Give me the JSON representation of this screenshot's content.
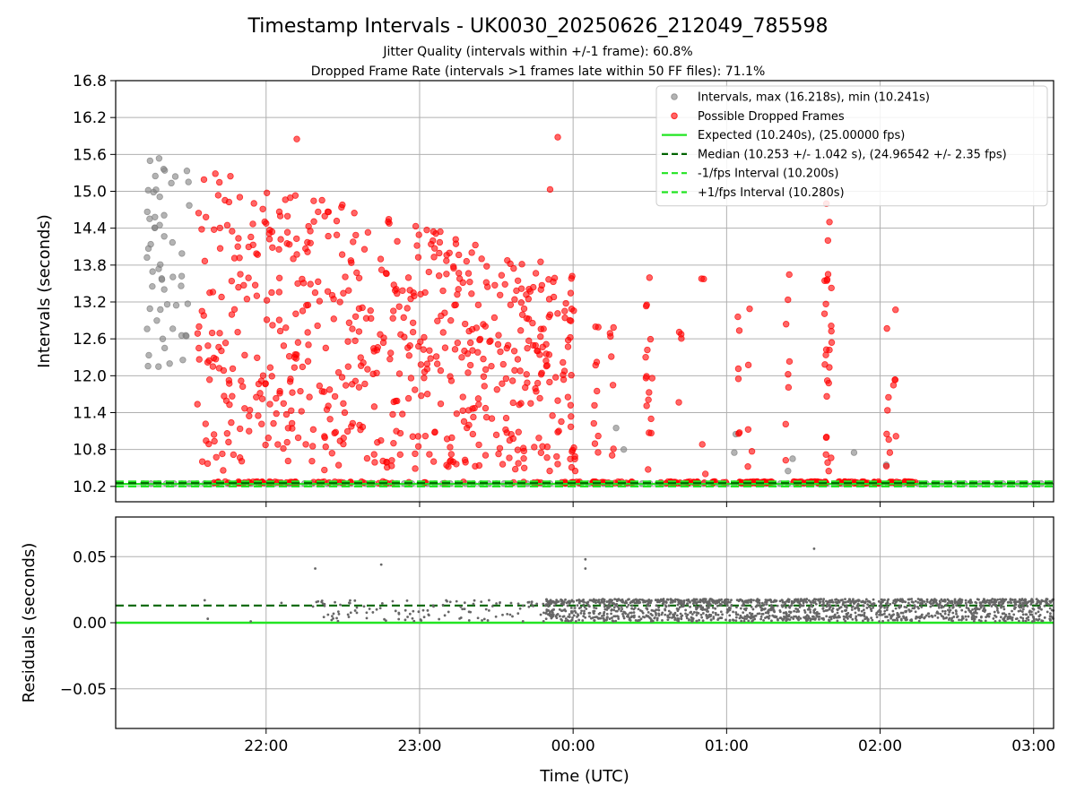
{
  "chart_data": [
    {
      "type": "scatter",
      "panel": "intervals",
      "title": "Timestamp Intervals - UK0030_20250626_212049_785598",
      "subtitles": [
        "Jitter Quality (intervals within +/-1 frame): 60.8%",
        "Dropped Frame Rate (intervals >1 frames late within 50 FF files): 71.1%"
      ],
      "ylabel": "Intervals (seconds)",
      "ylim": [
        9.95,
        16.8
      ],
      "yticks": [
        10.2,
        10.8,
        11.4,
        12.0,
        12.6,
        13.2,
        13.8,
        14.4,
        15.0,
        15.6,
        16.2,
        16.8
      ],
      "ytick_labels": [
        "10.2",
        "10.8",
        "11.4",
        "12.0",
        "12.6",
        "13.2",
        "13.8",
        "14.4",
        "15.0",
        "15.6",
        "16.2",
        "16.8"
      ],
      "x_range_hours": [
        21.02,
        27.13
      ],
      "grid": true,
      "legend_position": "top-right",
      "legend": [
        {
          "label": "Intervals, max (16.218s), min (10.241s)",
          "marker": "circle",
          "color": "#808080"
        },
        {
          "label": "Possible Dropped Frames",
          "marker": "circle",
          "color": "#ff0000"
        },
        {
          "label": "Expected (10.240s), (25.00000 fps)",
          "marker": "solid-line",
          "color": "#22e522"
        },
        {
          "label": "Median (10.253 +/- 1.042 s), (24.96542 +/- 2.35 fps)",
          "marker": "dashed-line",
          "color": "#006400"
        },
        {
          "label": "-1/fps Interval (10.200s)",
          "marker": "dashed-line",
          "color": "#22e522"
        },
        {
          "label": "+1/fps Interval (10.280s)",
          "marker": "dashed-line",
          "color": "#22e522"
        }
      ],
      "reference_lines": {
        "expected": 10.24,
        "median": 10.253,
        "minus_one_fps": 10.2,
        "plus_one_fps": 10.28
      },
      "series": [
        {
          "name": "Intervals, max (16.218s), min (10.241s)",
          "color": "#808080",
          "summary": {
            "max": 16.218,
            "min": 10.241,
            "baseline": 10.24,
            "span_hours": [
              21.2,
              27.13
            ]
          }
        },
        {
          "name": "Possible Dropped Frames",
          "color": "#ff0000",
          "summary": {
            "value_range": [
              10.25,
              15.9
            ],
            "dense_region_hours": [
              21.6,
              23.95
            ],
            "sparse_region_hours": [
              23.95,
              26.3
            ],
            "baseline_cluster_value": 10.25
          }
        }
      ]
    },
    {
      "type": "scatter",
      "panel": "residuals",
      "xlabel": "Time (UTC)",
      "ylabel": "Residuals (seconds)",
      "ylim": [
        -0.08,
        0.08
      ],
      "yticks": [
        -0.05,
        0.0,
        0.05
      ],
      "ytick_labels": [
        "−0.05",
        "0.00",
        "0.05"
      ],
      "xtick_hours": [
        22,
        23,
        24,
        25,
        26,
        27
      ],
      "xtick_labels": [
        "22:00",
        "23:00",
        "00:00",
        "01:00",
        "02:00",
        "03:00"
      ],
      "grid": true,
      "reference_lines": {
        "zero": 0.0,
        "median_residual": 0.013
      },
      "series": [
        {
          "name": "residuals",
          "color": "#666666",
          "summary": {
            "band": [
              0.0,
              0.017
            ],
            "outliers": [
              0.041,
              0.044,
              0.048,
              0.041,
              0.056
            ]
          }
        }
      ]
    }
  ]
}
